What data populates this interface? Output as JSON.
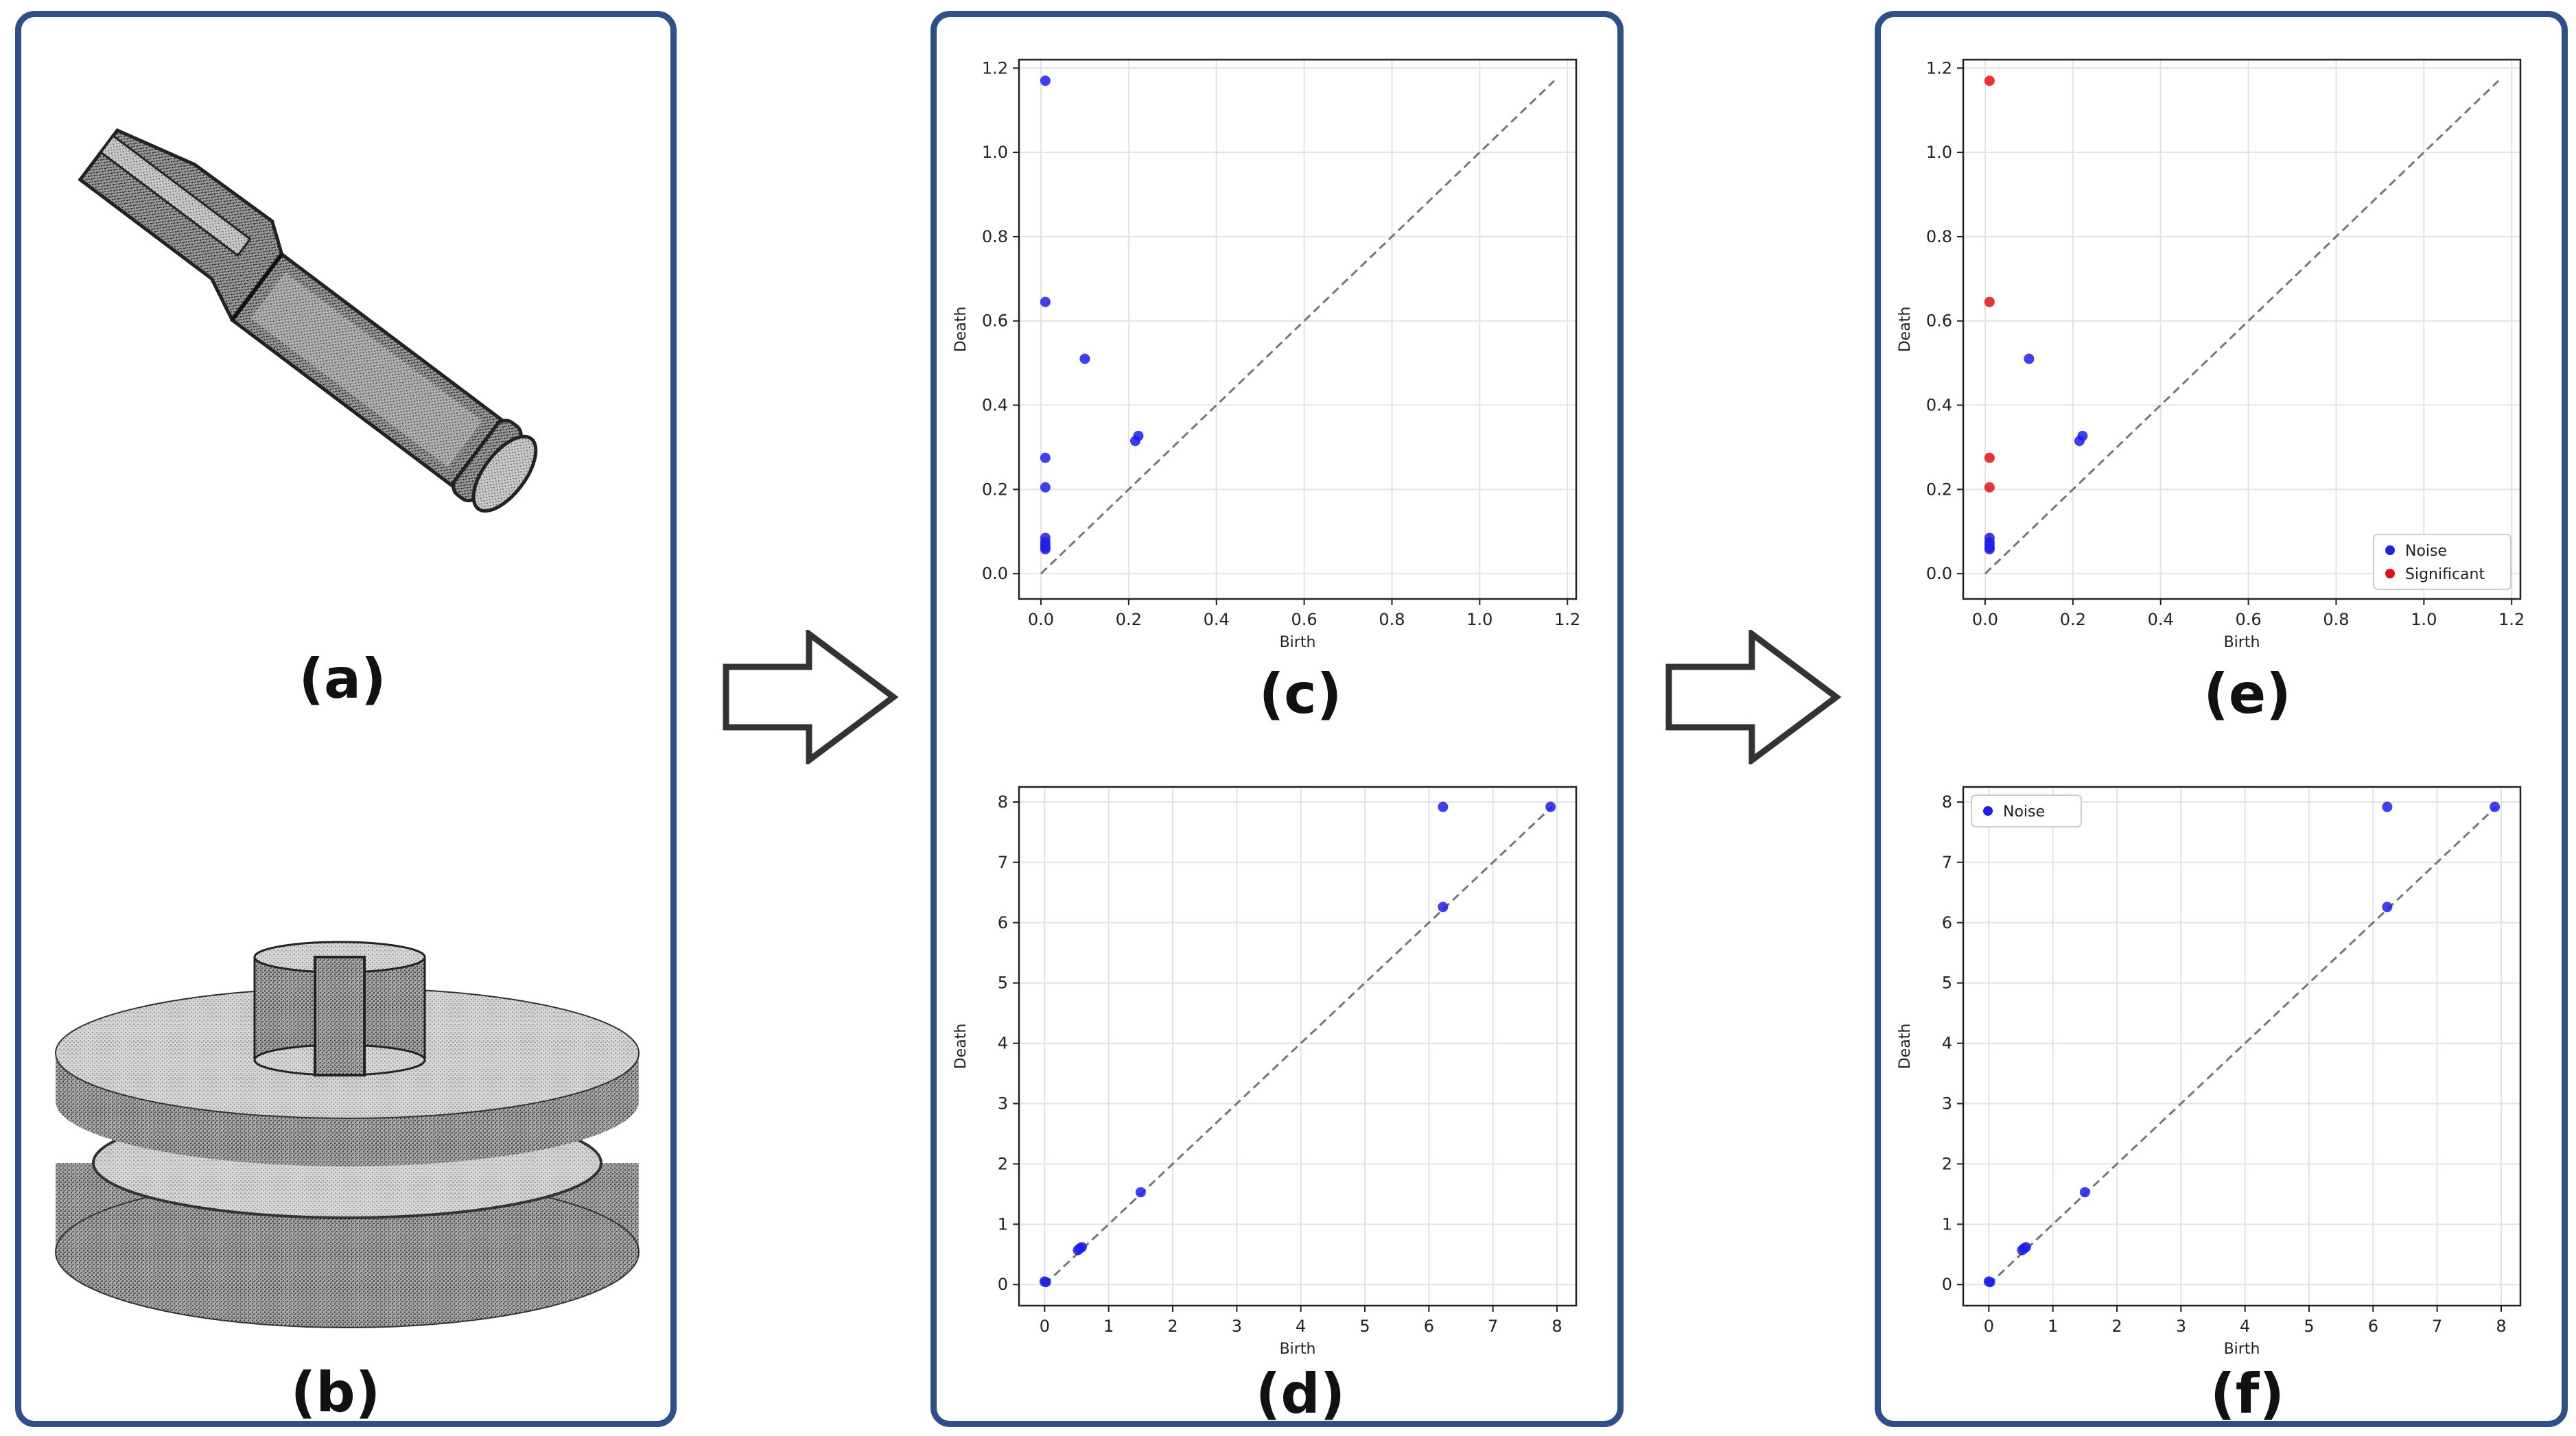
{
  "colors": {
    "panel_border": "#2f4f8a",
    "noise": "#1f1fe6",
    "significant": "#e01010",
    "diagonal": "#777777",
    "grid": "#e3e3e3",
    "axis": "#222222",
    "point_cloud": "#2a2a2a"
  },
  "labels": {
    "a": "(a)",
    "b": "(b)",
    "c": "(c)",
    "d": "(d)",
    "e": "(e)",
    "f": "(f)"
  },
  "icons": {
    "arrow1": "right-arrow-icon",
    "arrow2": "right-arrow-icon",
    "shape_a": "tubular-point-cloud-shape",
    "shape_b": "disc-point-cloud-shape"
  },
  "chart_data": [
    {
      "id": "c",
      "type": "scatter",
      "xlabel": "Birth",
      "ylabel": "Death",
      "xlim": [
        -0.05,
        1.22
      ],
      "ylim": [
        -0.06,
        1.22
      ],
      "xticks": [
        0.0,
        0.2,
        0.4,
        0.6,
        0.8,
        1.0,
        1.2
      ],
      "yticks": [
        0.0,
        0.2,
        0.4,
        0.6,
        0.8,
        1.0,
        1.2
      ],
      "tick_decimals": 1,
      "diagonal": [
        0.0,
        1.17
      ],
      "grid": true,
      "legend": null,
      "series": [
        {
          "color": "noise",
          "points": [
            [
              0.01,
              1.17
            ],
            [
              0.01,
              0.645
            ],
            [
              0.1,
              0.51
            ],
            [
              0.01,
              0.275
            ],
            [
              0.01,
              0.205
            ],
            [
              0.215,
              0.315
            ],
            [
              0.222,
              0.327
            ],
            [
              0.01,
              0.085
            ],
            [
              0.01,
              0.075
            ],
            [
              0.01,
              0.068
            ],
            [
              0.01,
              0.062
            ],
            [
              0.01,
              0.058
            ]
          ]
        }
      ]
    },
    {
      "id": "d",
      "type": "scatter",
      "xlabel": "Birth",
      "ylabel": "Death",
      "xlim": [
        -0.4,
        8.3
      ],
      "ylim": [
        -0.35,
        8.25
      ],
      "xticks": [
        0,
        1,
        2,
        3,
        4,
        5,
        6,
        7,
        8
      ],
      "yticks": [
        0,
        1,
        2,
        3,
        4,
        5,
        6,
        7,
        8
      ],
      "tick_decimals": 0,
      "diagonal": [
        0.0,
        7.92
      ],
      "grid": true,
      "legend": null,
      "series": [
        {
          "color": "noise",
          "points": [
            [
              6.22,
              7.92
            ],
            [
              7.9,
              7.92
            ],
            [
              6.22,
              6.26
            ],
            [
              1.5,
              1.53
            ],
            [
              0.52,
              0.57
            ],
            [
              0.55,
              0.6
            ],
            [
              0.58,
              0.62
            ],
            [
              0.0,
              0.05
            ],
            [
              0.02,
              0.04
            ]
          ]
        }
      ]
    },
    {
      "id": "e",
      "type": "scatter",
      "xlabel": "Birth",
      "ylabel": "Death",
      "xlim": [
        -0.05,
        1.22
      ],
      "ylim": [
        -0.06,
        1.22
      ],
      "xticks": [
        0.0,
        0.2,
        0.4,
        0.6,
        0.8,
        1.0,
        1.2
      ],
      "yticks": [
        0.0,
        0.2,
        0.4,
        0.6,
        0.8,
        1.0,
        1.2
      ],
      "tick_decimals": 1,
      "diagonal": [
        0.0,
        1.17
      ],
      "grid": true,
      "legend": "lower-right",
      "series": [
        {
          "name": "Noise",
          "color": "noise",
          "points": [
            [
              0.1,
              0.51
            ],
            [
              0.215,
              0.315
            ],
            [
              0.222,
              0.327
            ],
            [
              0.01,
              0.085
            ],
            [
              0.01,
              0.075
            ],
            [
              0.01,
              0.068
            ],
            [
              0.01,
              0.062
            ],
            [
              0.01,
              0.058
            ]
          ]
        },
        {
          "name": "Significant",
          "color": "significant",
          "points": [
            [
              0.01,
              1.17
            ],
            [
              0.01,
              0.645
            ],
            [
              0.01,
              0.275
            ],
            [
              0.01,
              0.205
            ]
          ]
        }
      ]
    },
    {
      "id": "f",
      "type": "scatter",
      "xlabel": "Birth",
      "ylabel": "Death",
      "xlim": [
        -0.4,
        8.3
      ],
      "ylim": [
        -0.35,
        8.25
      ],
      "xticks": [
        0,
        1,
        2,
        3,
        4,
        5,
        6,
        7,
        8
      ],
      "yticks": [
        0,
        1,
        2,
        3,
        4,
        5,
        6,
        7,
        8
      ],
      "tick_decimals": 0,
      "diagonal": [
        0.0,
        7.92
      ],
      "grid": true,
      "legend": "upper-left",
      "series": [
        {
          "name": "Noise",
          "color": "noise",
          "points": [
            [
              6.22,
              7.92
            ],
            [
              7.9,
              7.92
            ],
            [
              6.22,
              6.26
            ],
            [
              1.5,
              1.53
            ],
            [
              0.52,
              0.57
            ],
            [
              0.55,
              0.6
            ],
            [
              0.58,
              0.62
            ],
            [
              0.0,
              0.05
            ],
            [
              0.02,
              0.04
            ]
          ]
        }
      ]
    }
  ]
}
